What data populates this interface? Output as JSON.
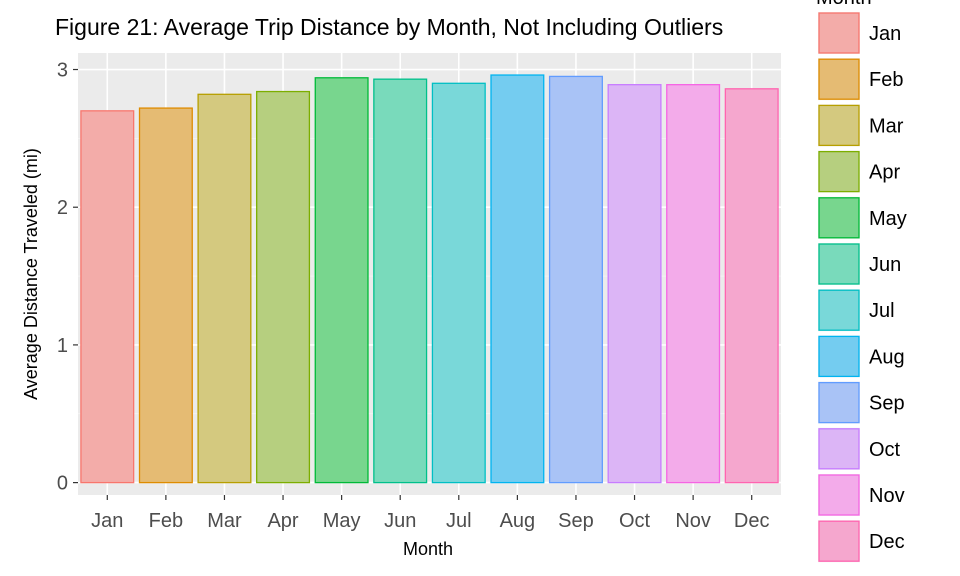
{
  "chart_data": {
    "type": "bar",
    "title": "Figure 21: Average Trip Distance by Month, Not Including Outliers",
    "xlabel": "Month",
    "ylabel": "Average Distance Traveled (mi)",
    "categories": [
      "Jan",
      "Feb",
      "Mar",
      "Apr",
      "May",
      "Jun",
      "Jul",
      "Aug",
      "Sep",
      "Oct",
      "Nov",
      "Dec"
    ],
    "values": [
      2.7,
      2.72,
      2.82,
      2.84,
      2.94,
      2.93,
      2.9,
      2.96,
      2.95,
      2.89,
      2.89,
      2.86
    ],
    "ylim": [
      -0.09,
      3.12
    ],
    "yticks": [
      0,
      1,
      2,
      3
    ],
    "grid": true,
    "legend": {
      "title": "Month",
      "position": "right",
      "entries": [
        "Jan",
        "Feb",
        "Mar",
        "Apr",
        "May",
        "Jun",
        "Jul",
        "Aug",
        "Sep",
        "Oct",
        "Nov",
        "Dec"
      ]
    },
    "colors": {
      "fill": [
        "#f3aca9",
        "#e5bb73",
        "#d4c97f",
        "#b6cf7f",
        "#78d68e",
        "#79dabb",
        "#79d8d9",
        "#74ccf0",
        "#a9c3f6",
        "#dcb5f6",
        "#f3abea",
        "#f5a7ce"
      ],
      "stroke": [
        "#f8766d",
        "#de8c00",
        "#b79f00",
        "#7cae00",
        "#00ba38",
        "#00c08b",
        "#00bfc4",
        "#00b4f0",
        "#619cff",
        "#c77cff",
        "#f564e3",
        "#ff64b0"
      ],
      "panel": "#ebebeb",
      "grid_major": "#ffffff"
    }
  }
}
